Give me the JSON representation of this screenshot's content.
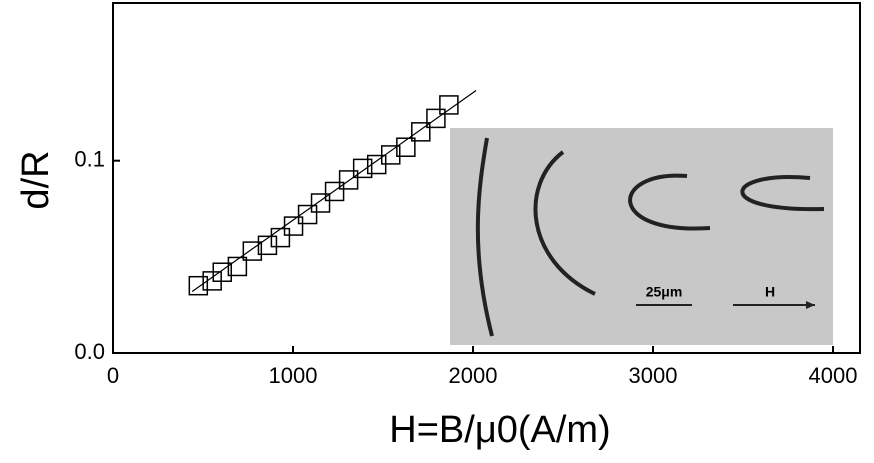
{
  "chart_data": {
    "type": "scatter",
    "xlabel": "H=B/μ0(A/m)",
    "ylabel": "d/R",
    "xlim": [
      0,
      4150
    ],
    "ylim": [
      0,
      0.182
    ],
    "xticks": [
      0,
      1000,
      2000,
      3000,
      4000
    ],
    "yticks": [
      {
        "value": 0,
        "label": "0.0"
      },
      0.1
    ],
    "grid": false,
    "series": [
      {
        "marker": "square",
        "color": "#000000",
        "x": [
          474,
          551,
          607,
          691,
          774,
          858,
          930,
          1003,
          1081,
          1153,
          1231,
          1309,
          1387,
          1465,
          1543,
          1627,
          1710,
          1794,
          1866
        ],
        "values": [
          0.035,
          0.0375,
          0.042,
          0.045,
          0.053,
          0.056,
          0.06,
          0.066,
          0.072,
          0.078,
          0.084,
          0.09,
          0.096,
          0.098,
          0.103,
          0.107,
          0.115,
          0.122,
          0.129
        ]
      },
      {
        "marker": "line",
        "color": "#000000",
        "x": [
          440,
          2017
        ],
        "values": [
          0.032,
          0.1365
        ]
      }
    ],
    "inset": {
      "labels": [
        "25μm",
        "H"
      ]
    }
  }
}
